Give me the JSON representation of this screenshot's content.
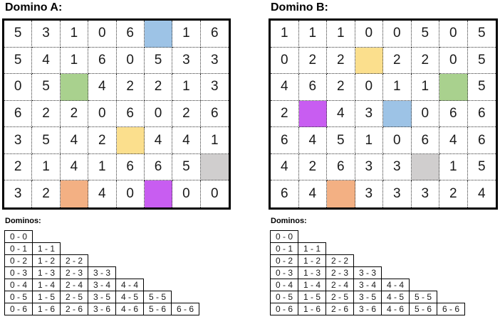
{
  "colors": {
    "blue": "#9DC3E6",
    "green": "#A9D18E",
    "yellow": "#FBDF8D",
    "orange": "#F3B083",
    "purple": "#C85DF1",
    "gray": "#D0CECE"
  },
  "panels": [
    {
      "title": "Domino A:",
      "dominos_label": "Dominos:",
      "grid": [
        [
          "5",
          "3",
          "1",
          "0",
          "6",
          "@blue",
          "1",
          "6"
        ],
        [
          "5",
          "4",
          "1",
          "6",
          "0",
          "5",
          "3",
          "3"
        ],
        [
          "0",
          "5",
          "@green",
          "4",
          "2",
          "2",
          "1",
          "3"
        ],
        [
          "6",
          "2",
          "2",
          "0",
          "6",
          "0",
          "2",
          "6"
        ],
        [
          "3",
          "5",
          "4",
          "2",
          "@yellow",
          "4",
          "4",
          "1"
        ],
        [
          "2",
          "1",
          "4",
          "1",
          "6",
          "6",
          "5",
          "@gray"
        ],
        [
          "3",
          "2",
          "@orange",
          "4",
          "0",
          "@purple",
          "0",
          "0"
        ]
      ],
      "domino_table": [
        [
          "0 - 0"
        ],
        [
          "0 - 1",
          "1 - 1"
        ],
        [
          "0 - 2",
          "1 - 2",
          "2 - 2"
        ],
        [
          "0 - 3",
          "1 - 3",
          "2 - 3",
          "3 - 3"
        ],
        [
          "0 - 4",
          "1 - 4",
          "2 - 4",
          "3 - 4",
          "4 - 4"
        ],
        [
          "0 - 5",
          "1 - 5",
          "2 - 5",
          "3 - 5",
          "4 - 5",
          "5 - 5"
        ],
        [
          "0 - 6",
          "1 - 6",
          "2 - 6",
          "3 - 6",
          "4 - 6",
          "5 - 6",
          "6 - 6"
        ]
      ]
    },
    {
      "title": "Domino B:",
      "dominos_label": "Dominos:",
      "grid": [
        [
          "1",
          "1",
          "1",
          "0",
          "0",
          "5",
          "0",
          "5"
        ],
        [
          "0",
          "2",
          "2",
          "@yellow",
          "2",
          "2",
          "0",
          "5"
        ],
        [
          "4",
          "6",
          "2",
          "0",
          "1",
          "1",
          "@green",
          "5"
        ],
        [
          "2",
          "@purple",
          "4",
          "3",
          "@blue",
          "0",
          "6",
          "6"
        ],
        [
          "6",
          "4",
          "5",
          "1",
          "0",
          "6",
          "4",
          "6"
        ],
        [
          "4",
          "2",
          "6",
          "3",
          "3",
          "@gray",
          "1",
          "5"
        ],
        [
          "6",
          "4",
          "@orange",
          "3",
          "3",
          "3",
          "2",
          "4"
        ]
      ],
      "domino_table": [
        [
          "0 - 0"
        ],
        [
          "0 - 1",
          "1 - 1"
        ],
        [
          "0 - 2",
          "1 - 2",
          "2 - 2"
        ],
        [
          "0 - 3",
          "1 - 3",
          "2 - 3",
          "3 - 3"
        ],
        [
          "0 - 4",
          "1 - 4",
          "2 - 4",
          "3 - 4",
          "4 - 4"
        ],
        [
          "0 - 5",
          "1 - 5",
          "2 - 5",
          "3 - 5",
          "4 - 5",
          "5 - 5"
        ],
        [
          "0 - 6",
          "1 - 6",
          "2 - 6",
          "3 - 6",
          "4 - 6",
          "5 - 6",
          "6 - 6"
        ]
      ]
    }
  ]
}
